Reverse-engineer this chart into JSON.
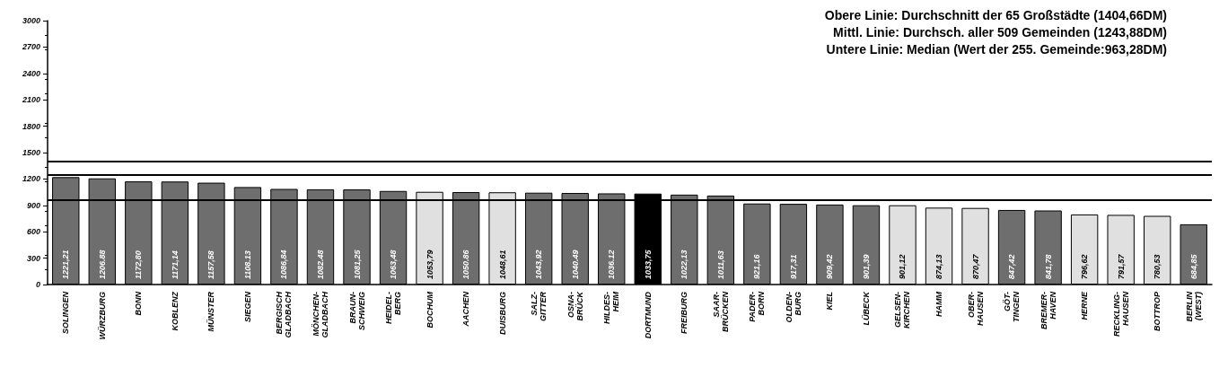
{
  "chart_data": {
    "type": "bar",
    "categories": [
      "SOLINGEN",
      "WÜRZBURG",
      "BONN",
      "KOBLENZ",
      "MÜNSTER",
      "SIEGEN",
      "BERGISCH\nGLADBACH",
      "MÖNCHEN-\nGLADBACH",
      "BRAUN-\nSCHWEIG",
      "HEIDEL-\nBERG",
      "BOCHUM",
      "AACHEN",
      "DUISBURG",
      "SALZ-\nGITTER",
      "OSNA-\nBRÜCK",
      "HILDES-\nHEIM",
      "DORTMUND",
      "FREIBURG",
      "SAAR-\nBRÜCKEN",
      "PADER-\nBORN",
      "OLDEN-\nBURG",
      "KIEL",
      "LÜBECK",
      "GELSEN-\nKIRCHEN",
      "HAMM",
      "OBER-\nHAUSEN",
      "GÖT-\nTINGEN",
      "BREMER-\nHAVEN",
      "HERNE",
      "RECKLING-\nHAUSEN",
      "BOTTROP",
      "BERLIN\n(WEST)"
    ],
    "values": [
      1221.21,
      1206.88,
      1172.8,
      1171.14,
      1157.58,
      1108.13,
      1086.84,
      1082.48,
      1081.25,
      1063.48,
      1053.79,
      1050.86,
      1048.61,
      1043.92,
      1040.49,
      1036.12,
      1033.75,
      1022.13,
      1011.63,
      921.16,
      917.31,
      909.42,
      901.39,
      901.12,
      874.13,
      870.47,
      847.42,
      841.78,
      796.62,
      791.57,
      780.53,
      684.85
    ],
    "value_labels": [
      "1221,21",
      "1206.88",
      "1172,80",
      "1171,14",
      "1157,58",
      "1108.13",
      "1086,84",
      "1082.48",
      "1081,25",
      "1063,48",
      "1053,79",
      "1050.86",
      "1048,61",
      "1043,92",
      "1040.49",
      "1036.12",
      "1033,75",
      "1022,13",
      "1011,63",
      "921,16",
      "917,31",
      "909,42",
      "901,39",
      "901,12",
      "874,13",
      "870,47",
      "847,42",
      "841,78",
      "796,62",
      "791,57",
      "780,53",
      "684,85"
    ],
    "colors": [
      "#6e6e6e",
      "#6e6e6e",
      "#6e6e6e",
      "#6e6e6e",
      "#6e6e6e",
      "#6e6e6e",
      "#6e6e6e",
      "#6e6e6e",
      "#6e6e6e",
      "#6e6e6e",
      "#e0e0e0",
      "#6e6e6e",
      "#e0e0e0",
      "#6e6e6e",
      "#6e6e6e",
      "#6e6e6e",
      "#000000",
      "#6e6e6e",
      "#6e6e6e",
      "#6e6e6e",
      "#6e6e6e",
      "#6e6e6e",
      "#6e6e6e",
      "#e0e0e0",
      "#e0e0e0",
      "#e0e0e0",
      "#6e6e6e",
      "#6e6e6e",
      "#e0e0e0",
      "#e0e0e0",
      "#e0e0e0",
      "#6e6e6e"
    ],
    "ylim": [
      0,
      3000
    ],
    "yticks": [
      0,
      300,
      600,
      900,
      1200,
      1500,
      1800,
      2100,
      2400,
      2700,
      3000
    ],
    "ref_lines": [
      {
        "axis": "y",
        "value": 1404.66,
        "color": "#000000"
      },
      {
        "axis": "y",
        "value": 1243.88,
        "color": "#000000"
      },
      {
        "axis": "y",
        "value": 963.28,
        "color": "#000000"
      }
    ],
    "annotations": [
      "Obere Linie: Durchschnitt der 65 Großstädte (1404,66DM)",
      "Mittl. Linie: Durchsch. aller 509 Gemeinden (1243,88DM)",
      "Untere Linie: Median (Wert der 255. Gemeinde:963,28DM)"
    ],
    "grid": false
  }
}
